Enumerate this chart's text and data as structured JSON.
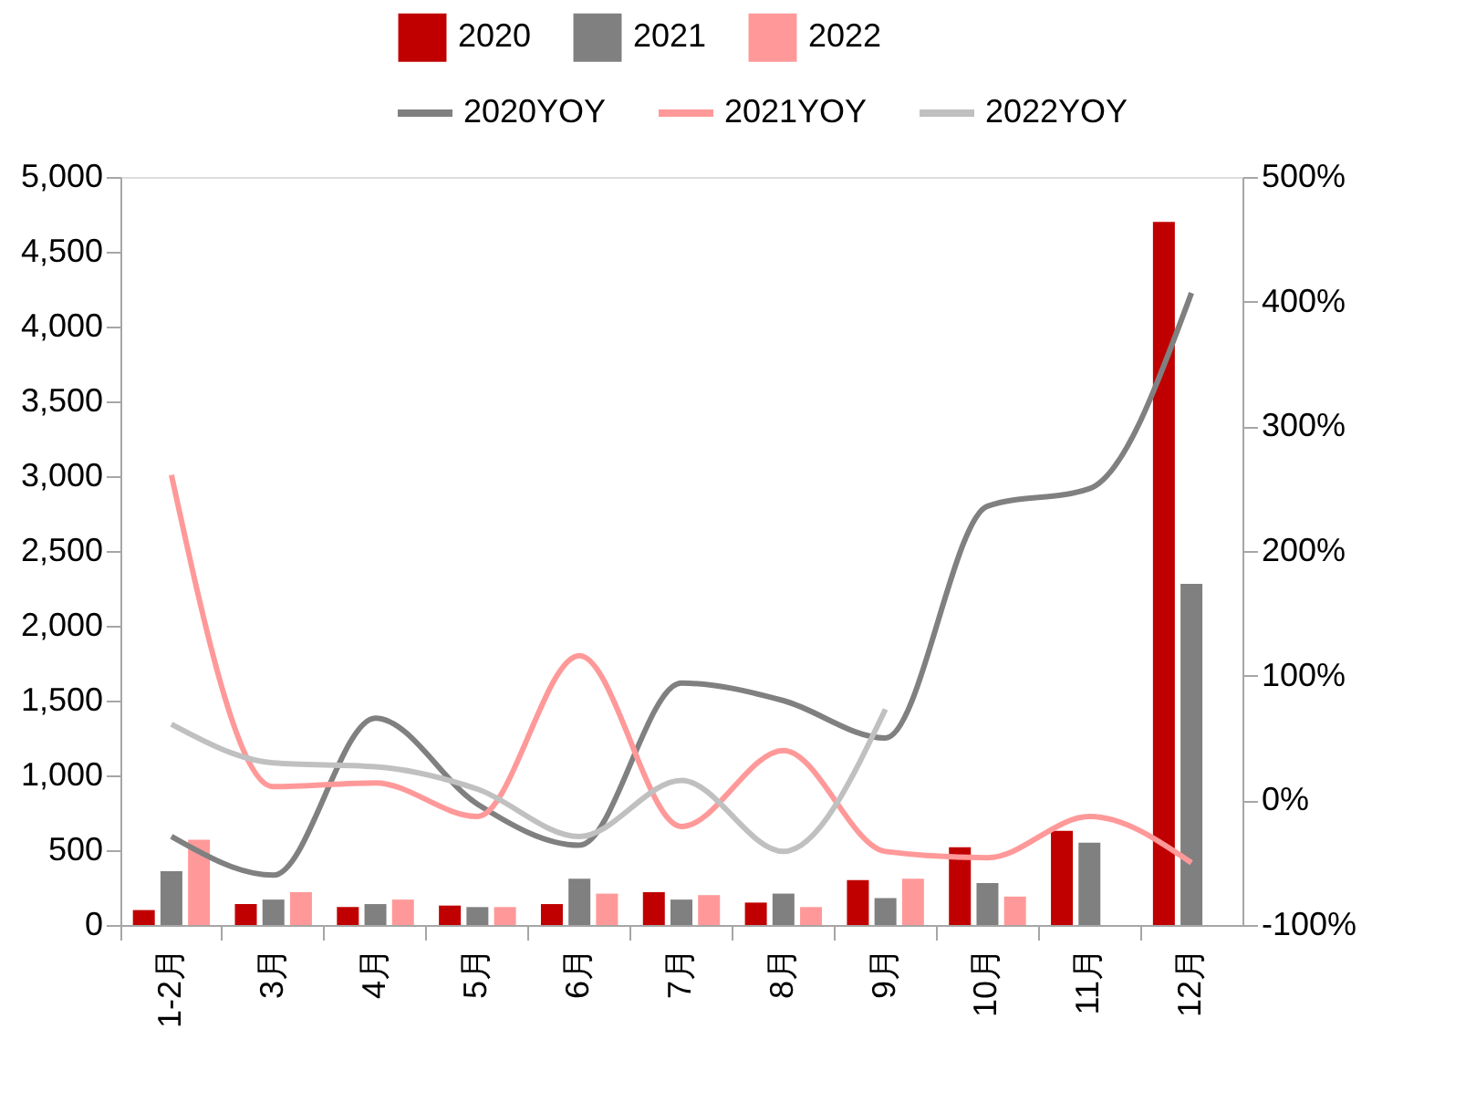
{
  "chart_data": {
    "type": "bar",
    "categories": [
      "1-2月",
      "3月",
      "4月",
      "5月",
      "6月",
      "7月",
      "8月",
      "9月",
      "10月",
      "11月",
      "12月"
    ],
    "series": [
      {
        "name": "2020",
        "color": "#c00000",
        "values": [
          100,
          140,
          120,
          130,
          140,
          220,
          150,
          300,
          520,
          630,
          4700
        ]
      },
      {
        "name": "2021",
        "color": "#808080",
        "values": [
          360,
          170,
          140,
          120,
          310,
          170,
          210,
          180,
          280,
          550,
          2280
        ]
      },
      {
        "name": "2022",
        "color": "#ff9999",
        "values": [
          570,
          220,
          170,
          120,
          210,
          200,
          120,
          310,
          190,
          null,
          null
        ]
      },
      {
        "name": "2020YOY",
        "type": "line",
        "axis": "y2",
        "color": "#808080",
        "values": [
          -29,
          -60,
          66,
          -3,
          -36,
          94,
          80,
          50,
          236,
          250,
          407
        ]
      },
      {
        "name": "2021YOY",
        "type": "line",
        "axis": "y2",
        "color": "#ff9999",
        "values": [
          261,
          11,
          14,
          -13,
          116,
          -21,
          40,
          -41,
          -46,
          -13,
          -50
        ]
      },
      {
        "name": "2022YOY",
        "type": "line",
        "axis": "y2",
        "color": "#c0c0c0",
        "values": [
          61,
          30,
          27,
          9,
          -29,
          16,
          -41,
          73,
          null,
          null,
          null
        ]
      }
    ],
    "ylim": [
      0,
      5000
    ],
    "yticks": [
      0,
      {
        "value": 500,
        "label": "500"
      },
      {
        "value": 1000,
        "label": "1,000"
      },
      {
        "value": 1500,
        "label": "1,500"
      },
      {
        "value": 2000,
        "label": "2,000"
      },
      {
        "value": 2500,
        "label": "2,500"
      },
      {
        "value": 3000,
        "label": "3,000"
      },
      {
        "value": 3500,
        "label": "3,500"
      },
      {
        "value": 4000,
        "label": "4,000"
      },
      {
        "value": 4500,
        "label": "4,500"
      },
      {
        "value": 5000,
        "label": "5,000"
      }
    ],
    "y2lim": [
      -100,
      500
    ],
    "y2ticks": [
      {
        "value": -100,
        "label": "-100%"
      },
      {
        "value": 0,
        "label": "0%"
      },
      {
        "value": 100,
        "label": "100%"
      },
      {
        "value": 200,
        "label": "200%"
      },
      {
        "value": 300,
        "label": "300%"
      },
      {
        "value": 400,
        "label": "400%"
      },
      {
        "value": 500,
        "label": "500%"
      }
    ],
    "grid": false,
    "legend": "top",
    "marker": "none",
    "line_style": "solid"
  }
}
